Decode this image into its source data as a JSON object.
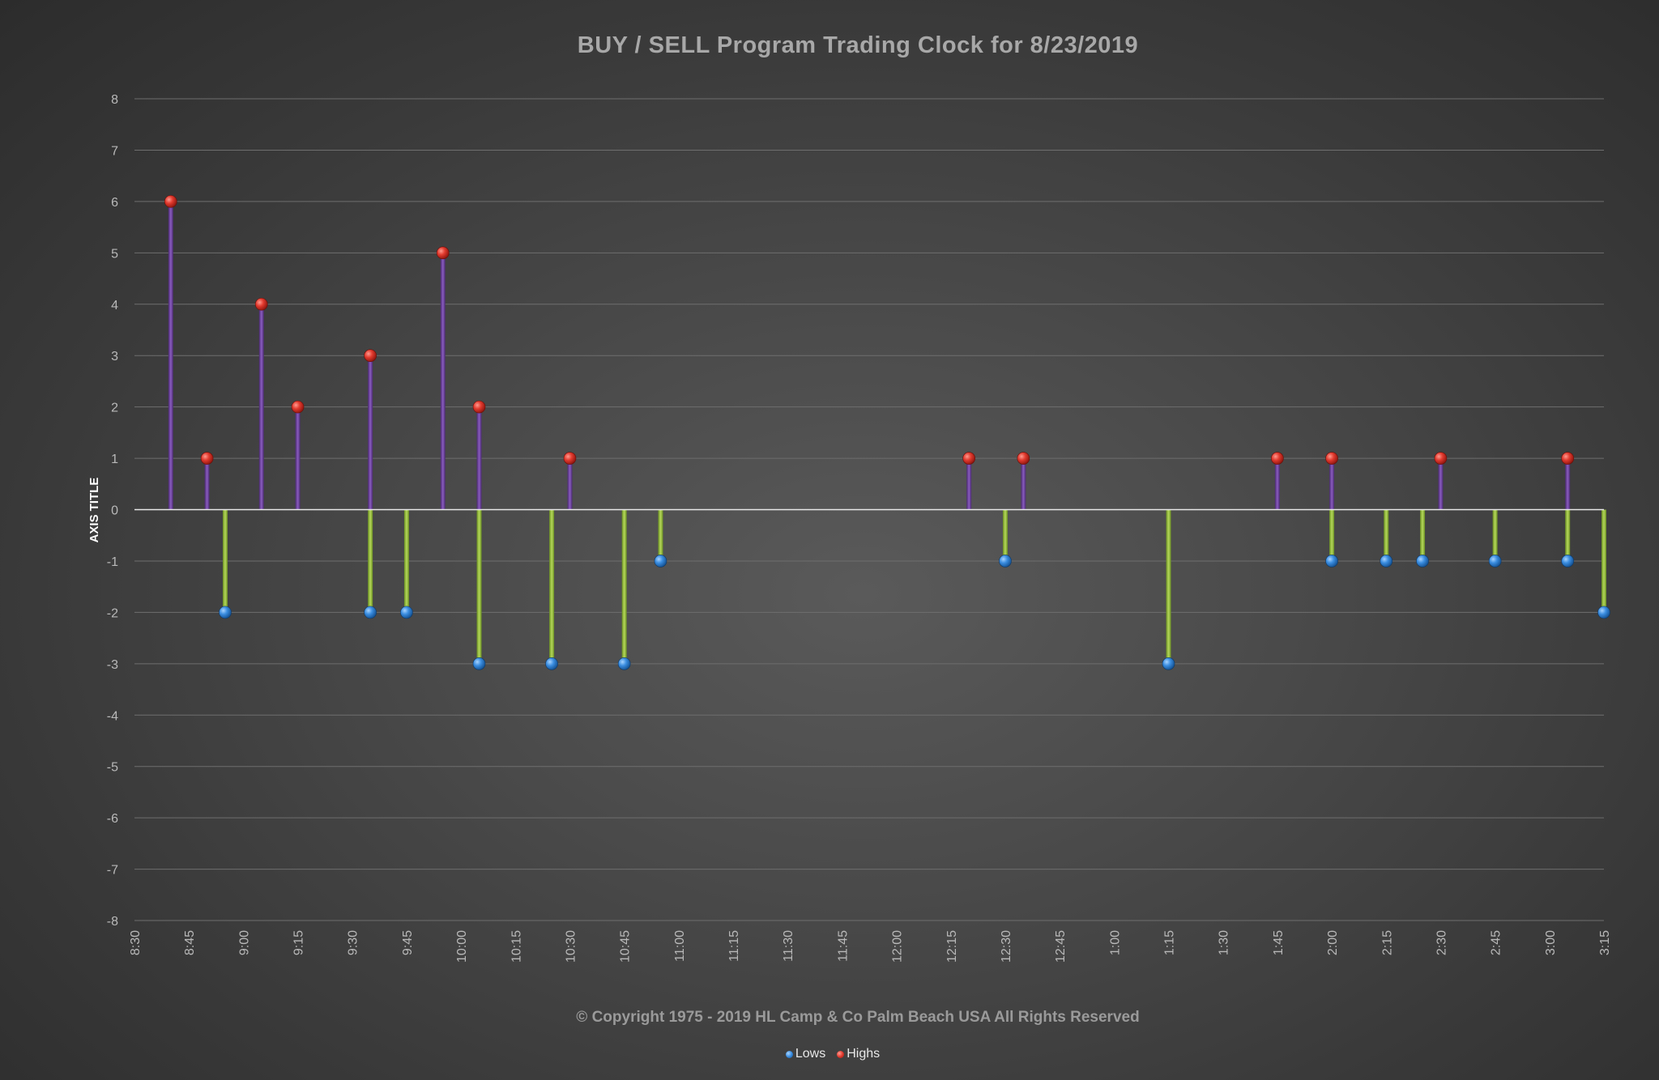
{
  "chart_data": {
    "type": "stem",
    "title": "BUY / SELL Program Trading Clock for 8/23/2019",
    "ylabel": "AXIS TITLE",
    "xlabel": "",
    "ylim": [
      -8,
      8
    ],
    "yticks": [
      8,
      7,
      6,
      5,
      4,
      3,
      2,
      1,
      0,
      -1,
      -2,
      -3,
      -4,
      -5,
      -6,
      -7,
      -8
    ],
    "x_categories": [
      "8:30",
      "8:45",
      "9:00",
      "9:15",
      "9:30",
      "9:45",
      "10:00",
      "10:15",
      "10:30",
      "10:45",
      "11:00",
      "11:15",
      "11:30",
      "11:45",
      "12:00",
      "12:15",
      "12:30",
      "12:45",
      "1:00",
      "1:15",
      "1:30",
      "1:45",
      "2:00",
      "2:15",
      "2:30",
      "2:45",
      "3:00",
      "3:15"
    ],
    "x_unit": "minutes after 8:30",
    "grid": true,
    "legend_position": "bottom",
    "series": [
      {
        "name": "Lows",
        "color": "#3d8fe0",
        "stem_color": "#8fb83a",
        "points": [
          {
            "x": 25,
            "y": -2
          },
          {
            "x": 65,
            "y": -2
          },
          {
            "x": 75,
            "y": -2
          },
          {
            "x": 95,
            "y": -3
          },
          {
            "x": 115,
            "y": -3
          },
          {
            "x": 135,
            "y": -3
          },
          {
            "x": 145,
            "y": -1
          },
          {
            "x": 240,
            "y": -1
          },
          {
            "x": 285,
            "y": -3
          },
          {
            "x": 330,
            "y": -1
          },
          {
            "x": 345,
            "y": -1
          },
          {
            "x": 355,
            "y": -1
          },
          {
            "x": 375,
            "y": -1
          },
          {
            "x": 395,
            "y": -1
          },
          {
            "x": 405,
            "y": -2
          }
        ]
      },
      {
        "name": "Highs",
        "color": "#e03a30",
        "stem_color": "#6a3d96",
        "points": [
          {
            "x": 10,
            "y": 6
          },
          {
            "x": 20,
            "y": 1
          },
          {
            "x": 35,
            "y": 4
          },
          {
            "x": 45,
            "y": 2
          },
          {
            "x": 65,
            "y": 3
          },
          {
            "x": 85,
            "y": 5
          },
          {
            "x": 95,
            "y": 2
          },
          {
            "x": 120,
            "y": 1
          },
          {
            "x": 230,
            "y": 1
          },
          {
            "x": 245,
            "y": 1
          },
          {
            "x": 315,
            "y": 1
          },
          {
            "x": 330,
            "y": 1
          },
          {
            "x": 360,
            "y": 1
          },
          {
            "x": 395,
            "y": 1
          }
        ]
      }
    ]
  },
  "footer": {
    "copyright": "© Copyright  1975 - 2019 HL Camp & Co   Palm Beach  USA  All Rights Reserved"
  },
  "legend": {
    "items": [
      {
        "label": "Lows",
        "color": "#3d8fe0"
      },
      {
        "label": "Highs",
        "color": "#e03a30"
      }
    ]
  }
}
